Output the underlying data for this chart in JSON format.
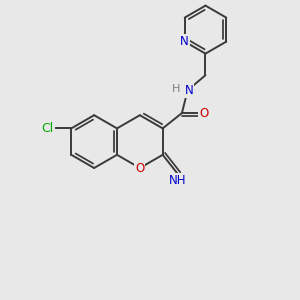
{
  "background_color": "#e8e8e8",
  "bond_color": "#3a3a3a",
  "bond_width": 1.4,
  "atom_colors": {
    "N": "#0000cc",
    "O": "#cc0000",
    "Cl": "#00aa00",
    "H": "#808080"
  },
  "font_size": 8.5,
  "figsize": [
    3.0,
    3.0
  ],
  "dpi": 100
}
